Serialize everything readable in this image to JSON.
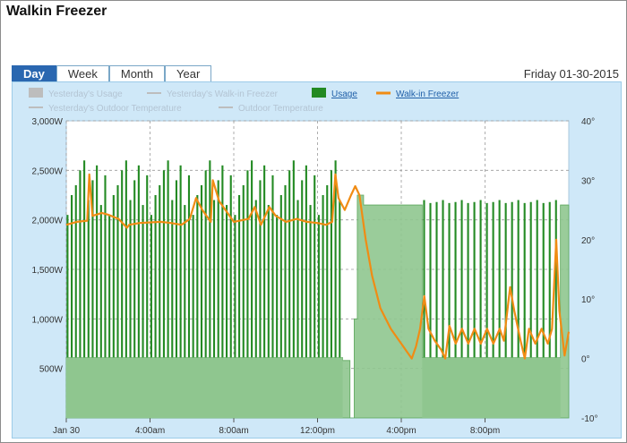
{
  "app": {
    "title": "Walkin Freezer"
  },
  "tabs": [
    {
      "label": "Day",
      "active": true
    },
    {
      "label": "Week",
      "active": false
    },
    {
      "label": "Month",
      "active": false
    },
    {
      "label": "Year",
      "active": false
    }
  ],
  "date": "Friday 01-30-2015",
  "colors": {
    "usage": "#238a23",
    "usage_area": "#8fc68f",
    "freezer": "#f08c14",
    "panel": "#cfe8f8",
    "plot": "#ffffff",
    "faded": "#b9c9d6"
  },
  "legend": [
    {
      "label": "Yesterday's Usage",
      "kind": "box",
      "color": "#bcbcbc",
      "enabled": false
    },
    {
      "label": "Yesterday's Walk-in Freezer",
      "kind": "line",
      "color": "#bcbcbc",
      "enabled": false
    },
    {
      "label": "Usage",
      "kind": "box",
      "color": "#238a23",
      "enabled": true
    },
    {
      "label": "Walk-in Freezer",
      "kind": "line",
      "color": "#f08c14",
      "enabled": true
    },
    {
      "label": "Yesterday's Outdoor Temperature",
      "kind": "line",
      "color": "#bcbcbc",
      "enabled": false
    },
    {
      "label": "Outdoor Temperature",
      "kind": "line",
      "color": "#bcbcbc",
      "enabled": false
    }
  ],
  "chart_data": {
    "type": "area",
    "x_ticks": [
      {
        "label": "Jan 30",
        "hour": 0
      },
      {
        "label": "4:00am",
        "hour": 4
      },
      {
        "label": "8:00am",
        "hour": 8
      },
      {
        "label": "12:00pm",
        "hour": 12
      },
      {
        "label": "4:00pm",
        "hour": 16
      },
      {
        "label": "8:00pm",
        "hour": 20
      }
    ],
    "x_range_hours": [
      0,
      24
    ],
    "y_left": {
      "range": [
        0,
        3000
      ],
      "ticks": [
        {
          "label": "500W",
          "value": 500
        },
        {
          "label": "1,000W",
          "value": 1000
        },
        {
          "label": "1,500W",
          "value": 1500
        },
        {
          "label": "2,000W",
          "value": 2000
        },
        {
          "label": "2,500W",
          "value": 2500
        },
        {
          "label": "3,000W",
          "value": 3000
        }
      ]
    },
    "y_right": {
      "range": [
        -10,
        40
      ],
      "ticks": [
        {
          "label": "-10°",
          "value": -10
        },
        {
          "label": "0°",
          "value": 0
        },
        {
          "label": "10°",
          "value": 10
        },
        {
          "label": "20°",
          "value": 20
        },
        {
          "label": "30°",
          "value": 30
        },
        {
          "label": "40°",
          "value": 40
        }
      ]
    },
    "grid": true,
    "series": [
      {
        "name": "Usage",
        "axis": "left",
        "segments": [
          {
            "start": 0.0,
            "end": 13.2,
            "style": "cycling",
            "base": 610,
            "peaks": [
              2050,
              2250,
              2350,
              2500,
              2600,
              2200,
              2400,
              2550,
              2150,
              2450
            ],
            "period": 0.2
          },
          {
            "start": 13.2,
            "end": 13.55,
            "style": "level",
            "value": 580
          },
          {
            "start": 13.55,
            "end": 13.75,
            "style": "level",
            "value": 0
          },
          {
            "start": 13.75,
            "end": 13.9,
            "style": "level",
            "value": 1000
          },
          {
            "start": 13.9,
            "end": 14.2,
            "style": "level",
            "value": 2250
          },
          {
            "start": 14.2,
            "end": 17.0,
            "style": "level",
            "value": 2150
          },
          {
            "start": 17.0,
            "end": 23.6,
            "style": "cycling",
            "base": 610,
            "peaks": [
              2200,
              2170,
              2180
            ],
            "period": 0.3
          },
          {
            "start": 23.6,
            "end": 24.0,
            "style": "level",
            "value": 2150
          }
        ]
      },
      {
        "name": "Walk-in Freezer",
        "axis": "right",
        "points": [
          [
            0.0,
            22.5
          ],
          [
            0.5,
            23.0
          ],
          [
            1.0,
            23.2
          ],
          [
            1.1,
            31.0
          ],
          [
            1.25,
            24.0
          ],
          [
            1.7,
            24.5
          ],
          [
            2.0,
            24.2
          ],
          [
            2.5,
            23.5
          ],
          [
            2.9,
            22.0
          ],
          [
            3.0,
            22.5
          ],
          [
            3.5,
            22.8
          ],
          [
            4.5,
            23.0
          ],
          [
            5.0,
            22.8
          ],
          [
            5.5,
            22.5
          ],
          [
            5.9,
            23.5
          ],
          [
            6.2,
            27.0
          ],
          [
            6.5,
            25.0
          ],
          [
            6.9,
            23.0
          ],
          [
            7.0,
            30.0
          ],
          [
            7.3,
            26.5
          ],
          [
            7.7,
            24.5
          ],
          [
            8.0,
            23.0
          ],
          [
            8.7,
            23.5
          ],
          [
            9.0,
            25.5
          ],
          [
            9.3,
            22.5
          ],
          [
            9.7,
            25.5
          ],
          [
            10.0,
            24.0
          ],
          [
            10.5,
            23.0
          ],
          [
            11.0,
            23.5
          ],
          [
            11.5,
            23.0
          ],
          [
            12.0,
            22.8
          ],
          [
            12.4,
            22.5
          ],
          [
            12.7,
            23.0
          ],
          [
            12.85,
            31.0
          ],
          [
            13.0,
            27.0
          ],
          [
            13.3,
            25.0
          ],
          [
            13.6,
            27.5
          ],
          [
            13.8,
            29.0
          ],
          [
            14.0,
            27.5
          ],
          [
            14.3,
            20.0
          ],
          [
            14.6,
            14.0
          ],
          [
            15.0,
            8.5
          ],
          [
            15.5,
            5.0
          ],
          [
            16.0,
            2.5
          ],
          [
            16.3,
            1.0
          ],
          [
            16.5,
            0.0
          ],
          [
            16.7,
            2.0
          ],
          [
            16.9,
            5.0
          ],
          [
            17.1,
            10.5
          ],
          [
            17.3,
            5.0
          ],
          [
            17.6,
            3.0
          ],
          [
            17.9,
            1.5
          ],
          [
            18.1,
            0.0
          ],
          [
            18.3,
            5.5
          ],
          [
            18.6,
            2.5
          ],
          [
            18.9,
            5.0
          ],
          [
            19.2,
            2.5
          ],
          [
            19.5,
            5.0
          ],
          [
            19.8,
            2.5
          ],
          [
            20.1,
            5.0
          ],
          [
            20.4,
            2.5
          ],
          [
            20.7,
            5.0
          ],
          [
            20.9,
            3.0
          ],
          [
            21.2,
            12.0
          ],
          [
            21.4,
            8.0
          ],
          [
            21.7,
            3.0
          ],
          [
            21.9,
            0.0
          ],
          [
            22.1,
            5.0
          ],
          [
            22.4,
            2.5
          ],
          [
            22.7,
            5.0
          ],
          [
            23.0,
            2.5
          ],
          [
            23.2,
            5.0
          ],
          [
            23.4,
            20.0
          ],
          [
            23.55,
            8.0
          ],
          [
            23.8,
            0.5
          ],
          [
            24.0,
            4.5
          ]
        ]
      }
    ]
  }
}
